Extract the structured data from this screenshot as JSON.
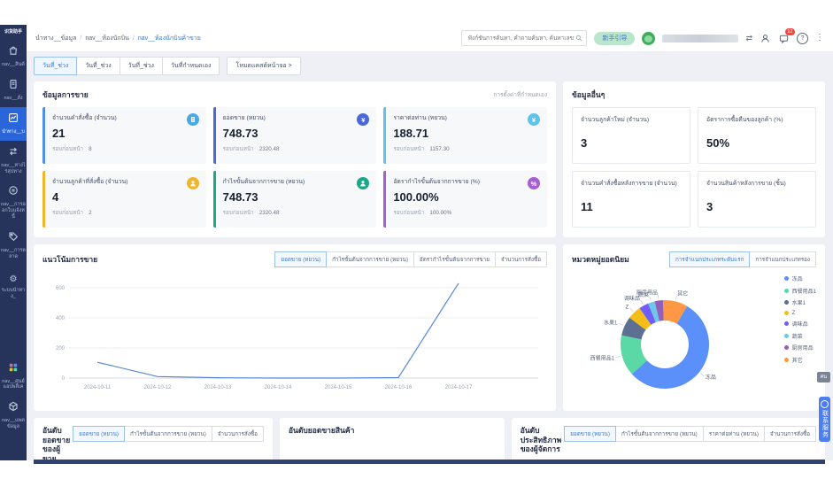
{
  "logo": {
    "text": "识货助手"
  },
  "sidebar": {
    "items": [
      {
        "label": "nav__สินค้",
        "icon": "bag",
        "active": false
      },
      {
        "label": "nav__สั่ง",
        "icon": "file",
        "active": false
      },
      {
        "label": "นำทาง__บ",
        "icon": "chart",
        "active": true
      },
      {
        "label": "nav__ห่างไร่สุปทาง",
        "icon": "swap",
        "active": false
      },
      {
        "label": "nav__การออกใบแจ้งหนี้",
        "icon": "coin",
        "active": false
      },
      {
        "label": "nav__การตลาด",
        "icon": "tag",
        "active": false
      },
      {
        "label": "ระบบนำทาง_",
        "icon": "gear",
        "active": false
      },
      {
        "label": "nav__ศูนย์แอปพลิเค",
        "icon": "grid",
        "active": false
      },
      {
        "label": "nav__แพคข้อมูล",
        "icon": "cube",
        "active": false
      }
    ]
  },
  "topbar": {
    "breadcrumb": [
      "นำทาง__ข้อมูล",
      "nav__ห้องนักบิน",
      "nav__ห้องนักบินค้าขาย"
    ],
    "search_placeholder": "ฟังก์ชันการค้นหา, คำถามค้นหา, ค้นหาเลขสา",
    "guide_button": "新手引导",
    "notification_count": "12"
  },
  "tabs": {
    "items": [
      "วันที่_ช่วง",
      "วันที่_ช่วง",
      "วันที่_ช่วง",
      "วันที่กำหนดเอง"
    ],
    "active": 0,
    "cast_button": "โหมดแคสต์หน้าจอ >"
  },
  "sales": {
    "title": "ข้อมูลการขาย",
    "settings_link": "การตั้งค่าที่กำหนดเอง",
    "prev_label": "รอบก่อนหน้า",
    "tiles": [
      {
        "label": "จำนวนคำสั่งซื้อ (จำนวน)",
        "value": "21",
        "prev": "8",
        "accent": "#4f8fe6",
        "icon": "order-doc",
        "icon_bg": "#49a9e8"
      },
      {
        "label": "ยอดขาย (หยวน)",
        "value": "748.73",
        "prev": "2320.48",
        "accent": "#4a68d8",
        "icon": "yen",
        "icon_bg": "#4a68d8"
      },
      {
        "label": "ราคาต่อท่าน (หยวน)",
        "value": "188.71",
        "prev": "1157.30",
        "accent": "#62c3ea",
        "icon": "yen",
        "icon_bg": "#62c3ea"
      },
      {
        "label": "จำนวนลูกค้าที่สั่งซื้อ (จำนวน)",
        "value": "4",
        "prev": "2",
        "accent": "#f0b62a",
        "icon": "person",
        "icon_bg": "#f0b62a"
      },
      {
        "label": "กำไรขั้นต้นจากการขาย (หยวน)",
        "value": "748.73",
        "prev": "2320.48",
        "accent": "#1ba888",
        "icon": "person",
        "icon_bg": "#1ba888"
      },
      {
        "label": "อัตรากำไรขั้นต้นจากการขาย (%)",
        "value": "100.00%",
        "prev": "100.00%",
        "accent": "#a55fd0",
        "icon": "percent",
        "icon_bg": "#a55fd0"
      }
    ]
  },
  "other": {
    "title": "ข้อมูลอื่นๆ",
    "tiles": [
      {
        "label": "จำนวนลูกค้าใหม่ (จำนวน)",
        "value": "3"
      },
      {
        "label": "อัตราการซื้อคืนของลูกค้า (%)",
        "value": "50%"
      },
      {
        "label": "จำนวนคำสั่งซื้อหลังการขาย (จำนวน)",
        "value": "11"
      },
      {
        "label": "จำนวนสินค้าหลังการขาย (ชิ้น)",
        "value": "3"
      }
    ]
  },
  "trend": {
    "title": "แนวโน้มการขาย",
    "buttons": [
      "ยอดขาย (หยวน)",
      "กำไรขั้นต้นจากการขาย (หยวน)",
      "อัตรากำไรขั้นต้นจากการขาย",
      "จำนวนการสั่งซื้อ"
    ],
    "active": 0
  },
  "categories": {
    "title": "หมวดหมู่ยอดนิยม",
    "buttons": [
      "การจำแนกประเภทระดับแรก",
      "การจำแนกประเภทรอง"
    ],
    "active": 0
  },
  "rankings": [
    {
      "title": "อันดับยอดขายของผู้ขาย",
      "buttons": [
        "ยอดขาย (หยวน)",
        "กำไรขั้นต้นจากการขาย (หยวน)",
        "จำนวนการสั่งซื้อ"
      ],
      "active": 0
    },
    {
      "title": "อันดับยอดขายสินค้า",
      "buttons": [],
      "active": -1
    },
    {
      "title": "อันดับประสิทธิภาพของผู้จัดการ",
      "buttons": [
        "ยอดขาย (หยวน)",
        "กำไรขั้นต้นจากการขาย (หยวน)",
        "ราคาต่อท่าน (หยวน)",
        "จำนวนการสั่งซื้อ"
      ],
      "active": 0
    }
  ],
  "floating": {
    "badge": "ศน",
    "service": "联系服务"
  },
  "chart_data": [
    {
      "type": "line",
      "title": "แนวโน้มการขาย",
      "series": [
        {
          "name": "ยอดขาย (หยวน)",
          "values": [
            105,
            10,
            2,
            0,
            0,
            3,
            630
          ]
        }
      ],
      "x": [
        "2024-10-11",
        "2024-10-12",
        "2024-10-13",
        "2024-10-14",
        "2024-10-15",
        "2024-10-16",
        "2024-10-17"
      ],
      "xlabel": "",
      "ylabel": "",
      "ylim": [
        0,
        600
      ],
      "yticks": [
        0,
        200,
        400,
        600
      ],
      "grid": true,
      "legend_position": "none",
      "color": "#5b86d8"
    },
    {
      "type": "pie",
      "donut": true,
      "title": "หมวดหมู่ยอดนิยม",
      "labels": [
        "冻品",
        "西餐用品1",
        "水果1",
        "Z",
        "调味品",
        "蔬菜",
        "厨房用品",
        "其它"
      ],
      "values": [
        55,
        15,
        7,
        5,
        3.5,
        2.5,
        3,
        9
      ],
      "unit": "percent-estimated",
      "colors": [
        "#5b8ff9",
        "#5ad8a6",
        "#5d7092",
        "#f6bd16",
        "#6f5ef9",
        "#6dc8ec",
        "#945fb9",
        "#ff9845"
      ],
      "start_angle": 30,
      "legend_position": "right"
    }
  ]
}
